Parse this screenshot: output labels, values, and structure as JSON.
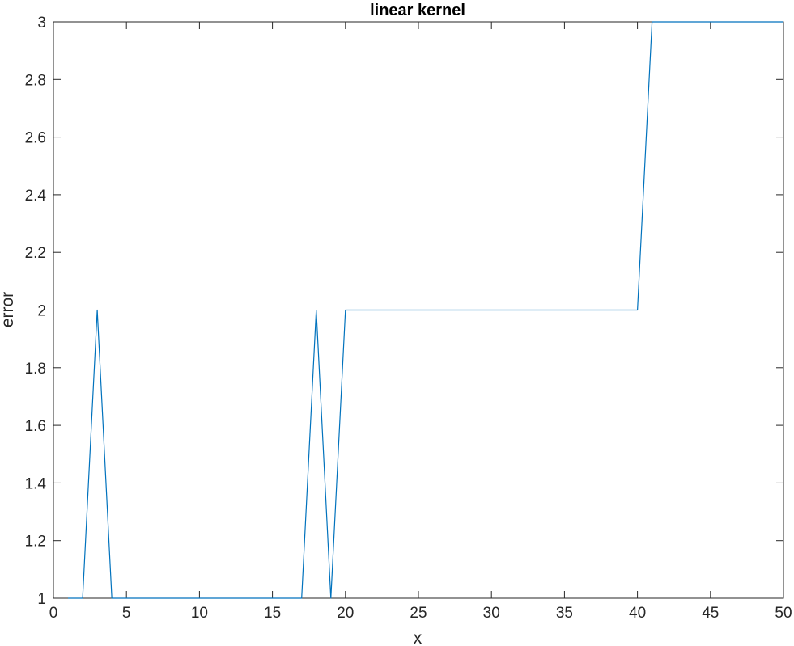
{
  "chart_data": {
    "type": "line",
    "title": "linear kernel",
    "xlabel": "x",
    "ylabel": "error",
    "xlim": [
      0,
      50
    ],
    "ylim": [
      1,
      3
    ],
    "xticks": [
      0,
      5,
      10,
      15,
      20,
      25,
      30,
      35,
      40,
      45,
      50
    ],
    "yticks": [
      1,
      1.2,
      1.4,
      1.6,
      1.8,
      2,
      2.2,
      2.4,
      2.6,
      2.8,
      3
    ],
    "ytick_labels": [
      "1",
      "1.2",
      "1.4",
      "1.6",
      "1.8",
      "2",
      "2.2",
      "2.4",
      "2.6",
      "2.8",
      "3"
    ],
    "grid": false,
    "color": "#0072BD",
    "series": [
      {
        "x": [
          1,
          2,
          3,
          4,
          5,
          6,
          7,
          8,
          9,
          10,
          11,
          12,
          13,
          14,
          15,
          16,
          17,
          18,
          19,
          20,
          21,
          22,
          23,
          24,
          25,
          26,
          27,
          28,
          29,
          30,
          31,
          32,
          33,
          34,
          35,
          36,
          37,
          38,
          39,
          40,
          41,
          42,
          43,
          44,
          45,
          46,
          47,
          48,
          49,
          50
        ],
        "values": [
          1,
          1,
          2,
          1,
          1,
          1,
          1,
          1,
          1,
          1,
          1,
          1,
          1,
          1,
          1,
          1,
          1,
          2,
          1,
          2,
          2,
          2,
          2,
          2,
          2,
          2,
          2,
          2,
          2,
          2,
          2,
          2,
          2,
          2,
          2,
          2,
          2,
          2,
          2,
          2,
          3,
          3,
          3,
          3,
          3,
          3,
          3,
          3,
          3,
          3
        ]
      }
    ]
  }
}
